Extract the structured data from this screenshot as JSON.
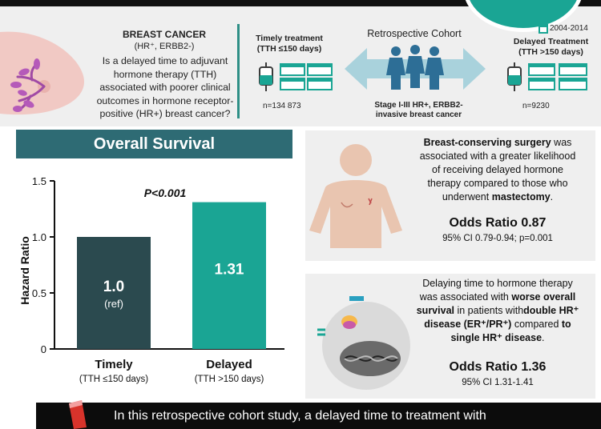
{
  "header": {
    "title": "BREAST CANCER",
    "subtitle": "(HR⁺, ERBB2-)",
    "question": "Is a delayed time to adjuvant hormone therapy (TTH) associated with poorer clinical outcomes in hormone receptor-positive (HR+) breast cancer?",
    "timely_label_1": "Timely treatment",
    "timely_label_2": "(TTH ≤150 days)",
    "timely_n": "n=134 873",
    "cohort_title": "Retrospective Cohort",
    "cohort_desc_1": "Stage I-III HR+, ERBB2-",
    "cohort_desc_2": "invasive breast cancer",
    "years": "2004-2014",
    "delayed_label_1": "Delayed Treatment",
    "delayed_label_2": "(TTH >150 days)",
    "delayed_n": "n=9230"
  },
  "survival": {
    "panel_title": "Overall Survival",
    "pvalue": "P<0.001",
    "bar1_value": "1.0",
    "bar1_ref": "(ref)",
    "bar2_value": "1.31",
    "cat1": "Timely",
    "cat1_sub": "(TTH ≤150 days)",
    "cat2": "Delayed",
    "cat2_sub": "(TTH >150 days)"
  },
  "chart_data": {
    "type": "bar",
    "title": "Overall Survival",
    "categories": [
      "Timely",
      "Delayed"
    ],
    "values": [
      1.0,
      1.31
    ],
    "ylabel": "Hazard Ratio",
    "ylim": [
      0,
      1.5
    ],
    "yticks": [
      "0",
      "0.5",
      "1.0",
      "1.5"
    ],
    "colors": [
      "#2b4a4f",
      "#1aa594"
    ]
  },
  "card1": {
    "line1_bold": "Breast-conserving surgery",
    "line1_rest": " was",
    "line2": "associated with a greater likelihood",
    "line3": "of receiving delayed hormone",
    "line4": "therapy compared to those who",
    "line5_pre": "underwent ",
    "line5_bold": "mastectomy",
    "line5_post": ".",
    "or": "Odds Ratio 0.87",
    "ci": "95% CI 0.79-0.94; p=0.001"
  },
  "card2": {
    "line1": "Delaying time to hormone therapy",
    "line2_pre": "was associated with ",
    "line2_bold": "worse overall",
    "line3_pre": "survival",
    "line3_mid": " in patients with",
    "line3_bold": "double HR⁺",
    "line4_bold": "disease (ER⁺/PR⁺)",
    "line4_post": " compared ",
    "line4_bold2": "to",
    "line5_bold": "single HR⁺ disease",
    "line5_post": ".",
    "or": "Odds Ratio 1.36",
    "ci": "95% CI 1.31-1.41"
  },
  "footer": {
    "text": "In this retrospective cohort study, a delayed time to treatment with"
  }
}
